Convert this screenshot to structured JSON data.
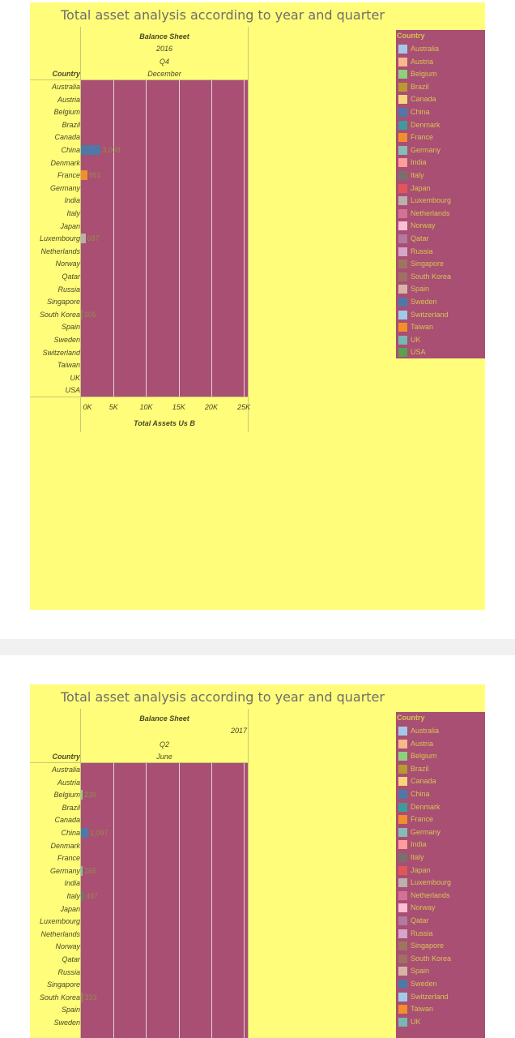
{
  "colors": {
    "background": "#fffd7a",
    "plot_background": "#a84f73",
    "grid": "#e9d2dc"
  },
  "legend": {
    "title": "Country",
    "items": [
      {
        "label": "Australia",
        "color": "#a6c8e8"
      },
      {
        "label": "Austria",
        "color": "#f7b88a"
      },
      {
        "label": "Belgium",
        "color": "#8fd07c"
      },
      {
        "label": "Brazil",
        "color": "#b99a2e"
      },
      {
        "label": "Canada",
        "color": "#f7d57c"
      },
      {
        "label": "China",
        "color": "#4e79a7"
      },
      {
        "label": "Denmark",
        "color": "#3d9b9b"
      },
      {
        "label": "France",
        "color": "#f28e2b"
      },
      {
        "label": "Germany",
        "color": "#86bcb6"
      },
      {
        "label": "India",
        "color": "#ff9d9a"
      },
      {
        "label": "Italy",
        "color": "#79706e"
      },
      {
        "label": "Japan",
        "color": "#e15759"
      },
      {
        "label": "Luxembourg",
        "color": "#bab0ac"
      },
      {
        "label": "Netherlands",
        "color": "#d37295"
      },
      {
        "label": "Norway",
        "color": "#fabfd2"
      },
      {
        "label": "Qatar",
        "color": "#b07aa1"
      },
      {
        "label": "Russia",
        "color": "#d4a6c8"
      },
      {
        "label": "Singapore",
        "color": "#9d7660"
      },
      {
        "label": "South Korea",
        "color": "#a07060"
      },
      {
        "label": "Spain",
        "color": "#d7b5a6"
      },
      {
        "label": "Sweden",
        "color": "#4e79a7"
      },
      {
        "label": "Switzerland",
        "color": "#a0cbe8"
      },
      {
        "label": "Taiwan",
        "color": "#f28e2b"
      },
      {
        "label": "UK",
        "color": "#76b7b2"
      },
      {
        "label": "USA",
        "color": "#59a14f"
      }
    ]
  },
  "chart_data": [
    {
      "type": "bar",
      "orientation": "horizontal",
      "title": "Total asset analysis according to year and quarter",
      "column_header": {
        "group": "Balance Sheet",
        "year": "2016",
        "quarter": "Q4",
        "month": "December"
      },
      "row_header": "Country",
      "xlabel": "Total Assets Us B",
      "xlim": [
        0,
        25600
      ],
      "xticks": [
        {
          "label": "0K",
          "value": 0
        },
        {
          "label": "5K",
          "value": 5000
        },
        {
          "label": "10K",
          "value": 10000
        },
        {
          "label": "15K",
          "value": 15000
        },
        {
          "label": "20K",
          "value": 20000
        },
        {
          "label": "25K",
          "value": 25000
        }
      ],
      "categories": [
        "Australia",
        "Austria",
        "Belgium",
        "Brazil",
        "Canada",
        "China",
        "Denmark",
        "France",
        "Germany",
        "India",
        "Italy",
        "Japan",
        "Luxembourg",
        "Netherlands",
        "Norway",
        "Qatar",
        "Russia",
        "Singapore",
        "South Korea",
        "Spain",
        "Sweden",
        "Switzerland",
        "Taiwan",
        "UK",
        "USA"
      ],
      "values": [
        null,
        null,
        null,
        null,
        null,
        3008,
        null,
        951,
        null,
        null,
        null,
        null,
        687,
        null,
        null,
        null,
        null,
        null,
        205,
        null,
        null,
        null,
        null,
        null,
        null
      ],
      "value_labels": [
        "",
        "",
        "",
        "",
        "",
        "3,008",
        "",
        "951",
        "",
        "",
        "",
        "",
        "687",
        "",
        "",
        "",
        "",
        "",
        "205",
        "",
        "",
        "",
        "",
        "",
        ""
      ]
    },
    {
      "type": "bar",
      "orientation": "horizontal",
      "title": "Total asset analysis according to year and quarter",
      "column_header": {
        "group": "Balance Sheet",
        "year": "2017",
        "quarter": "Q2",
        "month": "June"
      },
      "row_header": "Country",
      "categories": [
        "Australia",
        "Austria",
        "Belgium",
        "Brazil",
        "Canada",
        "China",
        "Denmark",
        "France",
        "Germany",
        "India",
        "Italy",
        "Japan",
        "Luxembourg",
        "Netherlands",
        "Norway",
        "Qatar",
        "Russia",
        "Singapore",
        "South Korea",
        "Spain",
        "Sweden"
      ],
      "values": [
        null,
        null,
        239,
        null,
        null,
        1097,
        null,
        null,
        265,
        null,
        497,
        null,
        null,
        null,
        null,
        null,
        null,
        null,
        333,
        null,
        null
      ],
      "value_labels": [
        "",
        "",
        "239",
        "",
        "",
        "1,097",
        "",
        "",
        "265",
        "",
        "497",
        "",
        "",
        "",
        "",
        "",
        "",
        "",
        "333",
        "",
        ""
      ]
    }
  ]
}
